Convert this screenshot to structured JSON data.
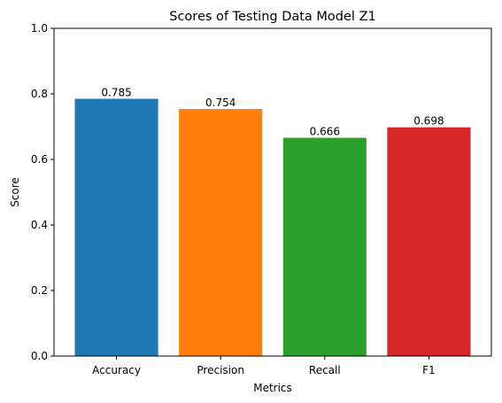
{
  "chart_data": {
    "type": "bar",
    "title": "Scores of Testing Data Model Z1",
    "xlabel": "Metrics",
    "ylabel": "Score",
    "categories": [
      "Accuracy",
      "Precision",
      "Recall",
      "F1"
    ],
    "values": [
      0.785,
      0.754,
      0.666,
      0.698
    ],
    "value_labels": [
      "0.785",
      "0.754",
      "0.666",
      "0.698"
    ],
    "colors": [
      "#1f77b4",
      "#ff7f0e",
      "#2ca02c",
      "#d62728"
    ],
    "ylim": [
      0,
      1.0
    ],
    "yticks": [
      0.0,
      0.2,
      0.4,
      0.6,
      0.8,
      1.0
    ],
    "ytick_labels": [
      "0.0",
      "0.2",
      "0.4",
      "0.6",
      "0.8",
      "1.0"
    ],
    "grid": false,
    "legend": "none"
  }
}
